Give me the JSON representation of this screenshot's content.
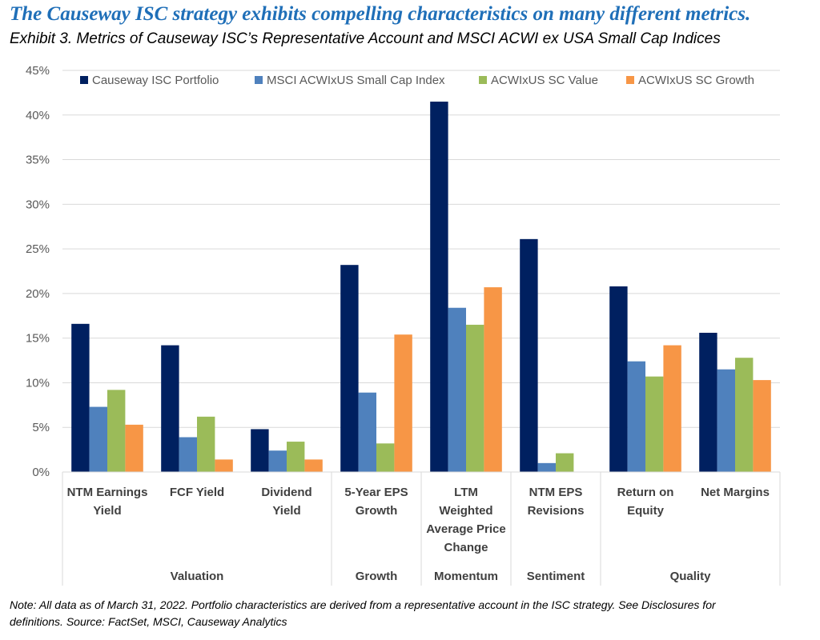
{
  "headline": "The Causeway ISC strategy exhibits compelling characteristics on many different metrics.",
  "exhibit_title": "Exhibit 3. Metrics of Causeway ISC’s Representative Account and MSCI ACWI ex USA Small Cap Indices",
  "footnote_line1": "Note: All data as of March 31, 2022.   Portfolio characteristics are derived from a representative account in the ISC strategy.  See Disclosures for",
  "footnote_line2": "definitions.  Source: FactSet, MSCI, Causeway Analytics",
  "chart_data": {
    "type": "bar",
    "categories": [
      [
        "NTM Earnings",
        "Yield"
      ],
      [
        "FCF Yield"
      ],
      [
        "Dividend",
        "Yield"
      ],
      [
        "5-Year EPS",
        "Growth"
      ],
      [
        "LTM",
        "Weighted",
        "Average Price",
        "Change"
      ],
      [
        "NTM EPS",
        "Revisions"
      ],
      [
        "Return on",
        "Equity"
      ],
      [
        "Net Margins"
      ]
    ],
    "groups": [
      {
        "label": "Valuation",
        "categories": [
          0,
          1,
          2
        ]
      },
      {
        "label": "Growth",
        "categories": [
          3
        ]
      },
      {
        "label": "Momentum",
        "categories": [
          4
        ]
      },
      {
        "label": "Sentiment",
        "categories": [
          5
        ]
      },
      {
        "label": "Quality",
        "categories": [
          6,
          7
        ]
      }
    ],
    "series": [
      {
        "name": "Causeway ISC Portfolio",
        "color": "#002060",
        "values": [
          16.6,
          14.2,
          4.8,
          23.2,
          41.5,
          26.1,
          20.8,
          15.6
        ]
      },
      {
        "name": "MSCI ACWIxUS Small Cap Index",
        "color": "#4f81bd",
        "values": [
          7.3,
          3.9,
          2.4,
          8.9,
          18.4,
          1.0,
          12.4,
          11.5
        ]
      },
      {
        "name": "ACWIxUS SC Value",
        "color": "#9bbb59",
        "values": [
          9.2,
          6.2,
          3.4,
          3.2,
          16.5,
          2.1,
          10.7,
          12.8
        ]
      },
      {
        "name": "ACWIxUS SC Growth",
        "color": "#f79646",
        "values": [
          5.3,
          1.4,
          1.4,
          15.4,
          20.7,
          0.0,
          14.2,
          10.3
        ]
      }
    ],
    "ylim": [
      0,
      45
    ],
    "yticks": [
      "0%",
      "5%",
      "10%",
      "15%",
      "20%",
      "25%",
      "30%",
      "35%",
      "40%",
      "45%"
    ],
    "grid": true,
    "legend_position": "top"
  }
}
